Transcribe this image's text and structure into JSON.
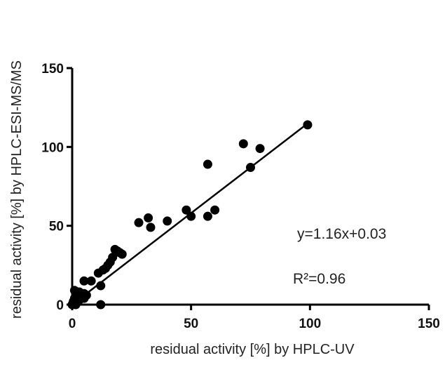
{
  "chart_data": {
    "type": "scatter",
    "xlabel": "residual activity [%] by HPLC-UV",
    "ylabel": "residual activity [%] by HPLC-ESI-MS/MS",
    "xlim": [
      0,
      150
    ],
    "ylim": [
      0,
      150
    ],
    "x_ticks": [
      "0",
      "50",
      "100",
      "150"
    ],
    "y_ticks": [
      "0",
      "50",
      "100",
      "150"
    ],
    "grid": false,
    "points": [
      {
        "x": 0,
        "y": 0
      },
      {
        "x": 0.5,
        "y": 2
      },
      {
        "x": 1,
        "y": 4
      },
      {
        "x": 1,
        "y": 9
      },
      {
        "x": 1.5,
        "y": 0
      },
      {
        "x": 2,
        "y": 2
      },
      {
        "x": 2,
        "y": 6
      },
      {
        "x": 3,
        "y": 3
      },
      {
        "x": 3,
        "y": 8
      },
      {
        "x": 4,
        "y": 5
      },
      {
        "x": 5,
        "y": 4
      },
      {
        "x": 5,
        "y": 7
      },
      {
        "x": 5,
        "y": 15
      },
      {
        "x": 6,
        "y": 6
      },
      {
        "x": 8,
        "y": 15
      },
      {
        "x": 11,
        "y": 20
      },
      {
        "x": 12,
        "y": 0
      },
      {
        "x": 12,
        "y": 12
      },
      {
        "x": 13,
        "y": 22
      },
      {
        "x": 14,
        "y": 23
      },
      {
        "x": 15,
        "y": 25
      },
      {
        "x": 16,
        "y": 27
      },
      {
        "x": 17,
        "y": 30
      },
      {
        "x": 18,
        "y": 35
      },
      {
        "x": 19,
        "y": 34
      },
      {
        "x": 20,
        "y": 33
      },
      {
        "x": 21,
        "y": 32
      },
      {
        "x": 28,
        "y": 52
      },
      {
        "x": 32,
        "y": 55
      },
      {
        "x": 33,
        "y": 49
      },
      {
        "x": 40,
        "y": 53
      },
      {
        "x": 48,
        "y": 60
      },
      {
        "x": 50,
        "y": 56
      },
      {
        "x": 57,
        "y": 89
      },
      {
        "x": 57,
        "y": 56
      },
      {
        "x": 60,
        "y": 60
      },
      {
        "x": 72,
        "y": 102
      },
      {
        "x": 75,
        "y": 87
      },
      {
        "x": 79,
        "y": 99
      },
      {
        "x": 99,
        "y": 114
      }
    ],
    "fit": {
      "slope": 1.16,
      "intercept": 0.03,
      "x_range": [
        0,
        98.5
      ]
    },
    "annotations": [
      "y=1.16x+0.03",
      "R²=0.96"
    ]
  }
}
